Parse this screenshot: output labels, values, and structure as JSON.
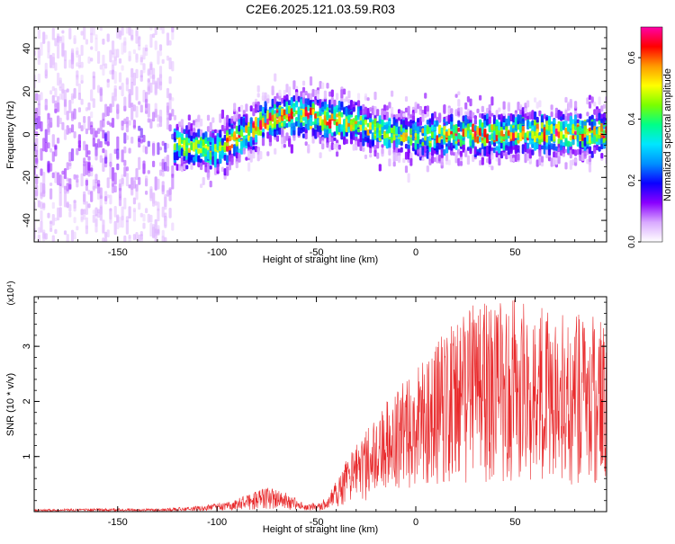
{
  "title": "C2E6.2025.121.03.59.R03",
  "colors": {
    "snr_line": "#e8282a",
    "colorbar_stops": [
      "#ffffff",
      "#d9a9ff",
      "#8a00ff",
      "#0b00ff",
      "#0090ff",
      "#00e6ff",
      "#00ff88",
      "#7aff00",
      "#ffff00",
      "#ff9900",
      "#ff0000",
      "#ff00a8"
    ]
  },
  "chart_data": [
    {
      "type": "heatmap",
      "name": "spectrogram",
      "xlabel": "Height of straight line (km)",
      "ylabel": "Frequency (Hz)",
      "xlim": [
        -192,
        96
      ],
      "ylim": [
        -50,
        50
      ],
      "xticks": [
        -150,
        -100,
        -50,
        0,
        50
      ],
      "yticks": [
        40,
        20,
        0,
        -20,
        -40
      ],
      "colorbar": {
        "label": "Normalized spectral amplitude",
        "lim": [
          0.0,
          0.7
        ],
        "ticks": [
          0.0,
          0.2,
          0.4,
          0.6
        ]
      },
      "ridge_center": [
        [
          -192,
          -5
        ],
        [
          -165,
          -7
        ],
        [
          -140,
          -4
        ],
        [
          -120,
          -5
        ],
        [
          -100,
          -8
        ],
        [
          -90,
          -2
        ],
        [
          -80,
          4
        ],
        [
          -70,
          8
        ],
        [
          -60,
          9
        ],
        [
          -50,
          8
        ],
        [
          -40,
          6
        ],
        [
          -30,
          5
        ],
        [
          -20,
          2
        ],
        [
          -10,
          0
        ],
        [
          0,
          -1
        ],
        [
          20,
          0
        ],
        [
          40,
          0
        ],
        [
          60,
          1
        ],
        [
          80,
          0
        ],
        [
          96,
          1
        ]
      ]
    },
    {
      "type": "line",
      "name": "snr",
      "xlabel": "Height of straight line (km)",
      "ylabel": "SNR (10 * v/v)",
      "y_multiplier": "(x10⁴)",
      "xlim": [
        -192,
        96
      ],
      "ylim": [
        0,
        3.9
      ],
      "xticks": [
        -150,
        -100,
        -50,
        0,
        50
      ],
      "yticks": [
        1,
        2,
        3
      ],
      "envelope": [
        [
          -192,
          0.04
        ],
        [
          -160,
          0.06
        ],
        [
          -130,
          0.05
        ],
        [
          -110,
          0.1
        ],
        [
          -95,
          0.18
        ],
        [
          -85,
          0.3
        ],
        [
          -75,
          0.45
        ],
        [
          -65,
          0.35
        ],
        [
          -55,
          0.12
        ],
        [
          -45,
          0.25
        ],
        [
          -40,
          0.6
        ],
        [
          -30,
          1.1
        ],
        [
          -20,
          1.6
        ],
        [
          -10,
          2.0
        ],
        [
          0,
          2.4
        ],
        [
          10,
          2.8
        ],
        [
          20,
          3.2
        ],
        [
          30,
          3.5
        ],
        [
          50,
          3.5
        ],
        [
          70,
          3.3
        ],
        [
          96,
          3.2
        ]
      ]
    }
  ]
}
